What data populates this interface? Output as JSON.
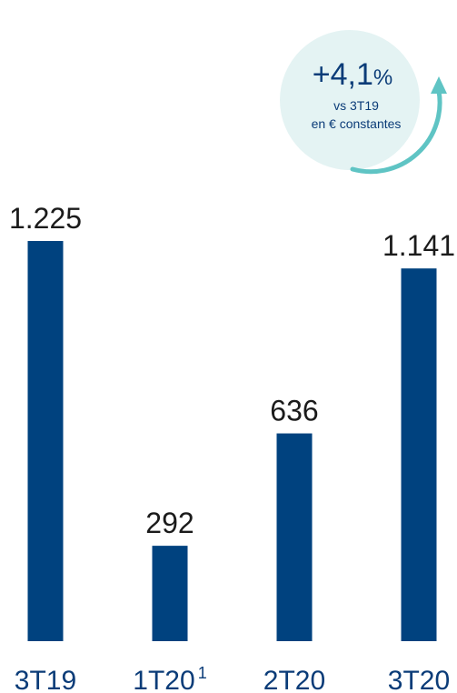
{
  "chart_data": {
    "type": "bar",
    "categories": [
      "3T19",
      "1T20",
      "2T20",
      "3T20"
    ],
    "category_superscripts": [
      "",
      "1",
      "",
      ""
    ],
    "values": [
      1225,
      292,
      636,
      1141
    ],
    "value_labels": [
      "1.225",
      "292",
      "636",
      "1.141"
    ],
    "ylim": [
      0,
      1225
    ],
    "grid": false,
    "bar_color": "#00427f",
    "label_color": "#0b3c78"
  },
  "badge": {
    "value": "+4,1",
    "unit": "%",
    "line1": "vs 3T19",
    "line2": "en € constantes",
    "circle_color": "#e4f3f3",
    "arrow_color": "#5fc4c4"
  }
}
